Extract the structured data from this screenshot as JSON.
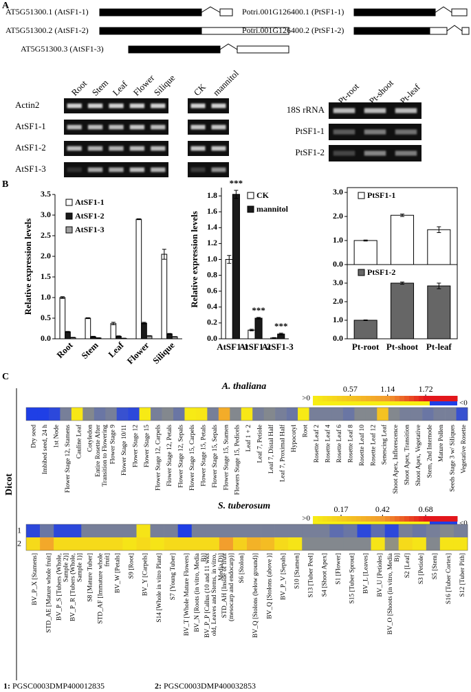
{
  "panel_labels": [
    "A",
    "B",
    "C"
  ],
  "gene_models": [
    {
      "label": "AT5G51300.1 (AtSF1-1)"
    },
    {
      "label": "AT5G51300.2 (AtSF1-2)"
    },
    {
      "label": "AT5G51300.3 (AtSF1-3)"
    },
    {
      "label": "Potri.001G126400.1 (PtSF1-1)"
    },
    {
      "label": "Potri.001G126400.2 (PtSF1-2)"
    }
  ],
  "gels": {
    "tissues": [
      "Root",
      "Stem",
      "Leaf",
      "Flower",
      "Silique"
    ],
    "treatments": [
      "CK",
      "mannitol"
    ],
    "genes": [
      "Actin2",
      "AtSF1-1",
      "AtSF1-2",
      "AtSF1-3"
    ],
    "poplar_tissues": [
      "Pt-root",
      "Pt-shoot",
      "Pt-leaf"
    ],
    "poplar_genes": [
      "18S rRNA",
      "PtSF1-1",
      "PtSF1-2"
    ]
  },
  "chart_data": [
    {
      "type": "bar",
      "ylabel": "Relative expression levels",
      "categories": [
        "Root",
        "Stem",
        "Leaf",
        "Flower",
        "Silique"
      ],
      "series": [
        {
          "name": "AtSF1-1",
          "color": "#ffffff",
          "values": [
            1.0,
            0.5,
            0.37,
            2.9,
            2.05
          ],
          "errors": [
            0.02,
            0.01,
            0.03,
            0.01,
            0.12
          ]
        },
        {
          "name": "AtSF1-2",
          "color": "#1a1a1a",
          "values": [
            0.17,
            0.05,
            0.06,
            0.38,
            0.12
          ],
          "errors": [
            0.01,
            0.01,
            0.01,
            0.02,
            0.01
          ]
        },
        {
          "name": "AtSF1-3",
          "color": "#a0a0a0",
          "values": [
            0.03,
            0.02,
            0.01,
            0.07,
            0.05
          ],
          "errors": [
            0.005,
            0.005,
            0.005,
            0.005,
            0.005
          ]
        }
      ],
      "ylim": [
        0,
        3.5
      ],
      "yticks": [
        {
          "value": 0,
          "label": "0.0"
        },
        {
          "value": 0.5,
          "label": "0.5"
        },
        {
          "value": 1,
          "label": "1.0"
        },
        {
          "value": 1.5,
          "label": "1.5"
        },
        {
          "value": 2,
          "label": "2.0"
        },
        {
          "value": 2.5,
          "label": "2.5"
        },
        {
          "value": 3,
          "label": "3.0"
        },
        {
          "value": 3.5,
          "label": "3.5"
        }
      ],
      "legend": "upper left"
    },
    {
      "type": "bar",
      "ylabel": "Relative expression levels",
      "categories": [
        "AtSF1-1",
        "AtSF1-2",
        "AtSF1-3"
      ],
      "series": [
        {
          "name": "CK",
          "color": "#ffffff",
          "values": [
            1.0,
            0.11,
            0.01
          ],
          "errors": [
            0.05,
            0.01,
            0.005
          ]
        },
        {
          "name": "mannitol",
          "color": "#1a1a1a",
          "values": [
            1.82,
            0.26,
            0.06
          ],
          "errors": [
            0.05,
            0.01,
            0.01
          ],
          "annotations": [
            "***",
            "***",
            "***"
          ]
        }
      ],
      "ylim": [
        0,
        2.0
      ],
      "yticks": [
        {
          "value": 0,
          "label": "0.0"
        },
        {
          "value": 0.2,
          "label": "0.2"
        },
        {
          "value": 0.4,
          "label": "0.4"
        },
        {
          "value": 0.6,
          "label": "0.6"
        },
        {
          "value": 0.8,
          "label": "0.8"
        },
        {
          "value": 1,
          "label": "1.0"
        },
        {
          "value": 1.2,
          "label": "1.2"
        },
        {
          "value": 1.4,
          "label": "1.4"
        },
        {
          "value": 1.6,
          "label": "1.6"
        },
        {
          "value": 1.8,
          "label": "1.8"
        }
      ],
      "legend": "upper right"
    },
    {
      "type": "bar",
      "series": [
        {
          "name": "PtSF1-1",
          "color": "#ffffff",
          "values": [
            1.0,
            2.05,
            1.45
          ],
          "errors": [
            0.02,
            0.05,
            0.12
          ]
        }
      ],
      "ylim": [
        0,
        3
      ],
      "yticks": [
        {
          "value": 0,
          "label": "0.0"
        },
        {
          "value": 1,
          "label": "1.0"
        },
        {
          "value": 2,
          "label": "2.0"
        },
        {
          "value": 3,
          "label": "3.0"
        }
      ],
      "legend": "upper left"
    },
    {
      "type": "bar",
      "categories": [
        "Pt-root",
        "Pt-shoot",
        "Pt-leaf"
      ],
      "series": [
        {
          "name": "PtSF1-2",
          "color": "#666666",
          "values": [
            1.0,
            3.0,
            2.85
          ],
          "errors": [
            0.02,
            0.06,
            0.15
          ]
        }
      ],
      "ylim": [
        0,
        4
      ],
      "yticks": [
        {
          "value": 0,
          "label": "0.0"
        },
        {
          "value": 1,
          "label": "1.0"
        },
        {
          "value": 2,
          "label": "2.0"
        },
        {
          "value": 3,
          "label": "3.0"
        }
      ],
      "legend": "upper left"
    }
  ],
  "heatmaps": {
    "group": "Dicot",
    "palette": {
      "negative": "#1f3fe6",
      "neutral": "#9c9a78",
      "low": "#f7ee14",
      "mid": "#f29a2e",
      "high": "#e3161b"
    },
    "maps": [
      {
        "title": "A. thaliana",
        "above": ">0",
        "below": "<0",
        "scale_ticks": [
          0.57,
          1.14,
          1.72
        ],
        "columns": [
          [
            "Dry seed"
          ],
          [
            "Imbibed seed, 24 h"
          ],
          [
            "1st Node"
          ],
          [
            "Flower Stage 12, Stamens"
          ],
          [
            "Cauline Leaf"
          ],
          [
            "Cotyledon"
          ],
          [
            "Entire Rosette After",
            "Transition to Flowering"
          ],
          [
            "Flower Stage 9"
          ],
          [
            "Flower Stage 10/11"
          ],
          [
            "Flower Stage 12"
          ],
          [
            "Flower Stage 15"
          ],
          [
            "Flower Stage 12, Carpels"
          ],
          [
            "Flower Stage 12, Petals"
          ],
          [
            "Flower Stage 12, Sepals"
          ],
          [
            "Flower Stage 15, Carpels"
          ],
          [
            "Flower Stage 15, Petals"
          ],
          [
            "Flower Stage 15, Sepals"
          ],
          [
            "Flower Stage 15, Stamen"
          ],
          [
            "Flowers Stage 15, Pedicels"
          ],
          [
            "Leaf 1 + 2"
          ],
          [
            "Leaf 7, Petiole"
          ],
          [
            "Leaf 7, Distal Half"
          ],
          [
            "Leaf 7, Proximal Half"
          ],
          [
            "Hypocotyl"
          ],
          [
            "Root"
          ],
          [
            "Rosette Leaf 2"
          ],
          [
            "Rosette Leaf 4"
          ],
          [
            "Rosette Leaf 6"
          ],
          [
            "Rosette Leaf 8"
          ],
          [
            "Rosette Leaf 10"
          ],
          [
            "Rosette Leaf 12"
          ],
          [
            "Senescing Leaf"
          ],
          [
            "Shoot Apex, Inflorescence"
          ],
          [
            "Shoot Apex, Transition"
          ],
          [
            "Shoot Apex, Vegetative"
          ],
          [
            "Stem, 2nd Internode"
          ],
          [
            "Mature Pollen"
          ],
          [
            "Seeds Stage 3 w/ Siliques"
          ],
          [
            "Vegetative Rosette"
          ]
        ],
        "rows": [
          {
            "values": [
              -1,
              -1,
              -0.9,
              -0.3,
              0.1,
              -0.2,
              -0.4,
              -0.3,
              -0.8,
              -0.9,
              0.05,
              -0.3,
              -0.2,
              -0.4,
              0.05,
              0.1,
              -0.3,
              0.9,
              -0.2,
              0.1,
              -0.3,
              -0.2,
              -0.3,
              -0.4,
              0.05,
              -0.3,
              -0.3,
              -0.3,
              -0.4,
              -0.2,
              -0.2,
              0.6,
              -0.2,
              -0.3,
              -0.3,
              -0.4,
              -0.3,
              -0.3,
              -0.8
            ]
          }
        ]
      },
      {
        "title": "S. tuberosum",
        "above": ">0",
        "below": "<0",
        "scale_ticks": [
          0.17,
          0.42,
          0.68
        ],
        "columns": [
          [
            "BV_P_X [Stamens]"
          ],
          [
            "STD_AE [Mature whole fruit]"
          ],
          [
            "BV_P_S [Tubers (Whole,",
            "Sample 2)]"
          ],
          [
            "BV_P_R [Tubers (Whole,",
            "Sample 1)]"
          ],
          [
            "S8 [Mature Tuber]"
          ],
          [
            "STD_AF [Immature whole",
            "fruit]"
          ],
          [
            "BV_W [Petals]"
          ],
          [
            "S9 [Root]"
          ],
          [
            "BV_Y [Carpels]"
          ],
          [
            "S14 [Whole in vitro Plant]"
          ],
          [
            "S7 [Young Tuber]"
          ],
          [
            "BV_T [Whole Mature Flowers]"
          ],
          [
            "BV_N [Roots (in vitro, Media",
            "B)]"
          ],
          [
            "BV_P_P [Callus (10 and 11 wks",
            "old, Leaves and Stems, in vitro,",
            "Media D)]"
          ],
          [
            "STD_AH [Inside of fruit",
            "(mesocarp and endocarp)]"
          ],
          [
            "S6 [Stolon]"
          ],
          [
            "BV_Q [Stolons (below ground)]"
          ],
          [
            "BV_Q [Stolons (above )]"
          ],
          [
            "BV_P_V [Sepals]"
          ],
          [
            "S10 [Stamen]"
          ],
          [
            "S13 [Tuber Peel]"
          ],
          [
            "S4 [Shoot Apex]"
          ],
          [
            "S1 [Flower]"
          ],
          [
            "S15 [Tuber Sprout]"
          ],
          [
            "BV_L [Leaves]"
          ],
          [
            "BV_U [Petioles]"
          ],
          [
            "BV_O [Shoots (in vitro, Media",
            "B)]"
          ],
          [
            "S2 [Leaf]"
          ],
          [
            "S3 [Petiole]"
          ],
          [
            "S5 [Stem]"
          ],
          [
            "S16 [Tuber Cortex]"
          ],
          [
            "S12 [Tuber Pith]"
          ]
        ],
        "rows": [
          {
            "label": "1",
            "values": [
              -0.9,
              -0.4,
              -0.9,
              -0.9,
              -0.3,
              -0.3,
              -0.3,
              -0.3,
              0.05,
              -0.3,
              -0.3,
              -1,
              -0.3,
              -0.3,
              -0.3,
              -0.3,
              -0.3,
              -0.3,
              -0.3,
              -0.3,
              -0.3,
              -0.3,
              -0.5,
              -0.4,
              -0.9,
              -0.5,
              -0.9,
              -0.3,
              -0.4,
              -0.3,
              -0.2,
              -0.3
            ]
          },
          {
            "label": "2",
            "values": [
              0.1,
              0.35,
              0.1,
              0.1,
              0.1,
              0.1,
              0.1,
              0.05,
              0.1,
              0.05,
              0.1,
              0.1,
              0.1,
              0.1,
              0.4,
              0.15,
              0.3,
              0.25,
              0.1,
              0.05,
              -0.2,
              -0.2,
              -0.2,
              -0.2,
              -0.2,
              0.05,
              -0.1,
              0.1,
              0.05,
              -0.2,
              0.05,
              0.05
            ]
          }
        ]
      }
    ]
  },
  "footnotes": [
    {
      "key": "1:",
      "id": "PGSC0003DMP400012835"
    },
    {
      "key": "2:",
      "id": "PGSC0003DMP400032853"
    }
  ]
}
